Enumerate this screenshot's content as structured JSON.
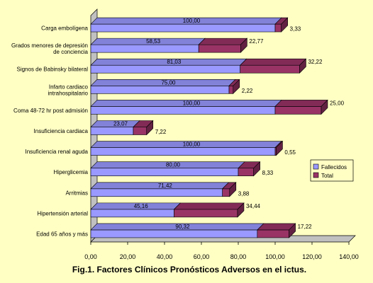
{
  "chart_data": {
    "type": "bar",
    "orientation": "horizontal",
    "stacked": true,
    "three_d": true,
    "title": "Fig.1. Factores Clínicos Pronósticos Adversos en el ictus.",
    "categories": [
      "Carga embolígena",
      "Grados menores de depresión de conciencia",
      "Signos de Babinsky bilateral",
      "Infarto cardiaco intrahospitalario",
      "Coma 48-72 hr post admisión",
      "Insuficiencia cardiaca",
      "Insuficiencia renal aguda",
      "Hiperglicemia",
      "Arritmias",
      "Hipertensión arterial",
      "Edad 65 años y más"
    ],
    "series": [
      {
        "name": "Fallecidos",
        "color": "#9999FF",
        "values": [
          100.0,
          58.53,
          81.03,
          75.0,
          100.0,
          23.07,
          100.0,
          80.0,
          71.42,
          45.16,
          90.32
        ],
        "labels": [
          "100,00",
          "58,53",
          "81,03",
          "75,00",
          "100,00",
          "23,07",
          "100,00",
          "80,00",
          "71,42",
          "45,16",
          "90,32"
        ]
      },
      {
        "name": "Total",
        "color": "#993366",
        "values": [
          3.33,
          22.77,
          32.22,
          2.22,
          25.0,
          7.22,
          0.55,
          8.33,
          3.88,
          34.44,
          17.22
        ],
        "labels": [
          "3,33",
          "22,77",
          "32,22",
          "2,22",
          "25,00",
          "7,22",
          "0,55",
          "8,33",
          "3,88",
          "34,44",
          "17,22"
        ]
      }
    ],
    "xlim": [
      0,
      140
    ],
    "xticks": [
      0,
      20,
      40,
      60,
      80,
      100,
      120,
      140
    ],
    "xtick_labels": [
      "0,00",
      "20,00",
      "40,00",
      "60,00",
      "80,00",
      "100,00",
      "120,00",
      "140,00"
    ],
    "grid": false,
    "legend": "right"
  }
}
